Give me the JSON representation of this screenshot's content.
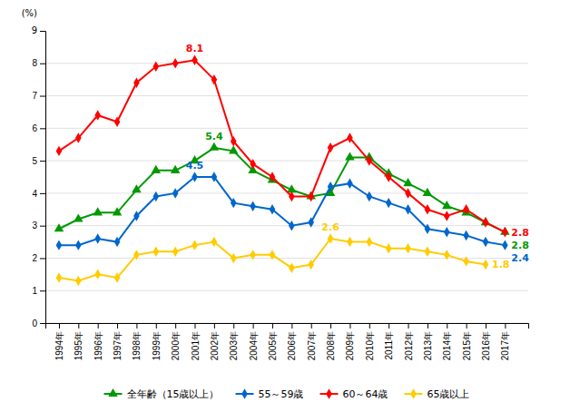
{
  "chart_data": {
    "type": "line",
    "x": [
      1994,
      1995,
      1996,
      1997,
      1998,
      1999,
      2000,
      2001,
      2002,
      2003,
      2004,
      2005,
      2006,
      2007,
      2008,
      2009,
      2010,
      2011,
      2012,
      2013,
      2014,
      2015,
      2016,
      2017
    ],
    "xlim": [
      1993.3,
      2018.2
    ],
    "xticks": [
      {
        "value": 1994,
        "label": "1994年"
      },
      {
        "value": 1995,
        "label": "1995年"
      },
      {
        "value": 1996,
        "label": "1996年"
      },
      {
        "value": 1997,
        "label": "1997年"
      },
      {
        "value": 1998,
        "label": "1998年"
      },
      {
        "value": 1999,
        "label": "1999年"
      },
      {
        "value": 2000,
        "label": "2000年"
      },
      {
        "value": 2001,
        "label": "2001年"
      },
      {
        "value": 2002,
        "label": "2002年"
      },
      {
        "value": 2003,
        "label": "2003年"
      },
      {
        "value": 2004,
        "label": "2004年"
      },
      {
        "value": 2005,
        "label": "2005年"
      },
      {
        "value": 2006,
        "label": "2006年"
      },
      {
        "value": 2007,
        "label": "2007年"
      },
      {
        "value": 2008,
        "label": "2008年"
      },
      {
        "value": 2009,
        "label": "2009年"
      },
      {
        "value": 2010,
        "label": "2010年"
      },
      {
        "value": 2011,
        "label": "2011年"
      },
      {
        "value": 2012,
        "label": "2012年"
      },
      {
        "value": 2013,
        "label": "2013年"
      },
      {
        "value": 2014,
        "label": "2014年"
      },
      {
        "value": 2015,
        "label": "2015年"
      },
      {
        "value": 2016,
        "label": "2016年"
      },
      {
        "value": 2017,
        "label": "2017年"
      }
    ],
    "ylim": [
      0,
      9
    ],
    "yticks": [
      0,
      1,
      2,
      3,
      4,
      5,
      6,
      7,
      8
    ],
    "ylabel": "(%)",
    "grid": true,
    "legend": "bottom",
    "series": [
      {
        "name": "全年齢（15歳以上）",
        "color": "#009900",
        "marker": "triangle",
        "values": [
          2.9,
          3.2,
          3.4,
          3.4,
          4.1,
          4.7,
          4.7,
          5.0,
          5.4,
          5.3,
          4.7,
          4.4,
          4.1,
          3.9,
          4.0,
          5.1,
          5.1,
          4.6,
          4.3,
          4.0,
          3.6,
          3.4,
          3.1,
          2.8
        ]
      },
      {
        "name": "55～59歳",
        "color": "#0066cc",
        "marker": "diamond",
        "values": [
          2.4,
          2.4,
          2.6,
          2.5,
          3.3,
          3.9,
          4.0,
          4.5,
          4.5,
          3.7,
          3.6,
          3.5,
          3.0,
          3.1,
          4.2,
          4.3,
          3.9,
          3.7,
          3.5,
          2.9,
          2.8,
          2.7,
          2.5,
          2.4
        ]
      },
      {
        "name": "60～64歳",
        "color": "#ff0000",
        "marker": "diamond",
        "values": [
          5.3,
          5.7,
          6.4,
          6.2,
          7.4,
          7.9,
          8.0,
          8.1,
          7.5,
          5.6,
          4.9,
          4.5,
          3.9,
          3.9,
          5.4,
          5.7,
          5.0,
          4.5,
          4.0,
          3.5,
          3.3,
          3.5,
          3.1,
          2.8
        ]
      },
      {
        "name": "65歳以上",
        "color": "#ffcc00",
        "marker": "diamond",
        "values": [
          1.4,
          1.3,
          1.5,
          1.4,
          2.1,
          2.2,
          2.2,
          2.4,
          2.5,
          2.0,
          2.1,
          2.1,
          1.7,
          1.8,
          2.6,
          2.5,
          2.5,
          2.3,
          2.3,
          2.2,
          2.1,
          1.9,
          1.8,
          null
        ]
      }
    ],
    "annotations": [
      {
        "text": "5.4",
        "x": 2002,
        "y": 5.4,
        "color": "#009900"
      },
      {
        "text": "4.5",
        "x": 2001,
        "y": 4.5,
        "color": "#0066cc"
      },
      {
        "text": "8.1",
        "x": 2001,
        "y": 8.1,
        "color": "#ff0000"
      },
      {
        "text": "2.6",
        "x": 2008,
        "y": 2.6,
        "color": "#ffcc00"
      },
      {
        "text": "2.8",
        "x": 2017,
        "y": 2.8,
        "color": "#ff0000"
      },
      {
        "text": "2.8",
        "x": 2017,
        "y": 2.8,
        "color": "#009900"
      },
      {
        "text": "2.4",
        "x": 2017,
        "y": 2.4,
        "color": "#0066cc"
      },
      {
        "text": "1.8",
        "x": 2016,
        "y": 1.8,
        "color": "#ffcc00"
      },
      {
        "text": "9",
        "y": 9
      }
    ]
  }
}
